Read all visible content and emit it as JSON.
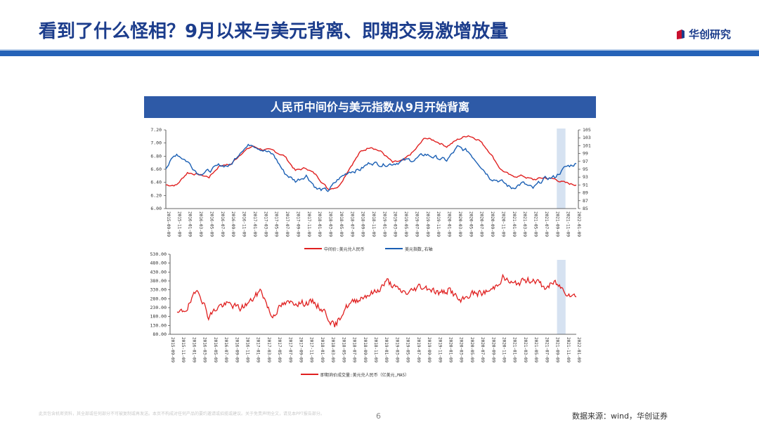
{
  "header": {
    "title": "看到了什么怪相？9月以来与美元背离、即期交易激增放量",
    "logo_text": "华创研究"
  },
  "banner": {
    "text": "人民币中间价与美元指数从9月开始背离"
  },
  "chart_data": [
    {
      "type": "line",
      "title": "人民币中间价与美元指数从9月开始背离",
      "ylim_left": [
        6.0,
        7.2
      ],
      "ylim_right": [
        85,
        105
      ],
      "y_ticks_left": [
        "7.20",
        "7.00",
        "6.80",
        "6.60",
        "6.40",
        "6.20",
        "6.00"
      ],
      "y_ticks_right": [
        "105",
        "103",
        "101",
        "99",
        "97",
        "95",
        "93",
        "91",
        "89",
        "87",
        "85"
      ],
      "categories": [
        "2015-09-09",
        "2015-11-09",
        "2016-01-09",
        "2016-03-09",
        "2016-05-09",
        "2016-07-09",
        "2016-09-09",
        "2016-11-09",
        "2017-01-09",
        "2017-03-09",
        "2017-05-09",
        "2017-07-09",
        "2017-09-09",
        "2017-11-09",
        "2018-01-09",
        "2018-03-09",
        "2018-05-09",
        "2018-07-09",
        "2018-09-09",
        "2018-11-09",
        "2019-01-09",
        "2019-03-09",
        "2019-05-09",
        "2019-07-09",
        "2019-09-09",
        "2019-11-09",
        "2020-01-09",
        "2020-03-09",
        "2020-05-09",
        "2020-07-09",
        "2020-09-09",
        "2020-11-09",
        "2021-01-09",
        "2021-03-09",
        "2021-05-09",
        "2021-07-09",
        "2021-09-09",
        "2021-11-09",
        "2022-01-09"
      ],
      "series": [
        {
          "name": "中间价:美元兑人民币",
          "axis": "left",
          "color": "#e02020",
          "values": [
            6.36,
            6.36,
            6.55,
            6.52,
            6.48,
            6.66,
            6.67,
            6.85,
            6.95,
            6.9,
            6.88,
            6.8,
            6.58,
            6.62,
            6.5,
            6.3,
            6.34,
            6.62,
            6.86,
            6.95,
            6.86,
            6.7,
            6.73,
            6.88,
            7.08,
            7.03,
            6.95,
            7.05,
            7.12,
            7.05,
            6.86,
            6.6,
            6.49,
            6.5,
            6.44,
            6.47,
            6.45,
            6.39,
            6.36
          ]
        },
        {
          "name": "美元指数,右轴",
          "axis": "right",
          "color": "#1a5fb4",
          "values": [
            95.5,
            99.0,
            97.0,
            94.0,
            94.5,
            96.0,
            96.0,
            100.0,
            101.5,
            100.0,
            98.5,
            94.0,
            92.0,
            93.5,
            90.0,
            89.5,
            92.5,
            94.5,
            95.0,
            96.8,
            96.2,
            96.5,
            97.2,
            97.4,
            98.8,
            98.0,
            97.2,
            100.5,
            99.5,
            96.5,
            93.0,
            92.0,
            90.2,
            91.5,
            90.0,
            92.5,
            93.0,
            95.5,
            96.5
          ]
        }
      ],
      "highlight": [
        "2021-09-09",
        "2021-11-09"
      ],
      "legend": "bottom"
    },
    {
      "type": "line",
      "ylim": [
        80,
        530
      ],
      "y_ticks": [
        "530.00",
        "480.00",
        "430.00",
        "380.00",
        "330.00",
        "280.00",
        "230.00",
        "180.00",
        "130.00",
        "80.00"
      ],
      "categories": [
        "2015-09-09",
        "2015-11-09",
        "2016-01-09",
        "2016-03-09",
        "2016-05-09",
        "2016-07-09",
        "2016-09-09",
        "2016-11-09",
        "2017-01-09",
        "2017-03-09",
        "2017-05-09",
        "2017-07-09",
        "2017-09-09",
        "2017-11-09",
        "2018-01-09",
        "2018-03-09",
        "2018-05-09",
        "2018-07-09",
        "2018-09-09",
        "2018-11-09",
        "2019-01-09",
        "2019-03-09",
        "2019-05-09",
        "2019-07-09",
        "2019-09-09",
        "2019-11-09",
        "2020-01-09",
        "2020-03-09",
        "2020-05-09",
        "2020-07-09",
        "2020-09-09",
        "2020-11-09",
        "2021-01-09",
        "2021-03-09",
        "2021-05-09",
        "2021-07-09",
        "2021-09-09",
        "2021-11-09",
        "2022-01-09"
      ],
      "series": [
        {
          "name": "即期询价成交量:美元兑人民币（亿美元,MA5）",
          "color": "#e02020",
          "values": [
            190,
            230,
            335,
            180,
            240,
            250,
            225,
            265,
            330,
            180,
            245,
            260,
            255,
            260,
            210,
            120,
            230,
            270,
            300,
            320,
            380,
            330,
            310,
            350,
            340,
            310,
            330,
            260,
            310,
            310,
            330,
            400,
            360,
            380,
            390,
            340,
            370,
            320,
            290
          ]
        }
      ],
      "highlight": [
        "2021-09-09",
        "2021-11-09"
      ],
      "legend": "bottom"
    }
  ],
  "footer": {
    "disclaimer": "此页包含机密资料，其全部或任何部分不可被复制或再发送。本页不构成对任何产品的要约邀请或招揽或建议。关于免责声明全文，请见本PPT报告部分。",
    "page_number": "6",
    "source": "数据来源：wind，华创证券"
  }
}
